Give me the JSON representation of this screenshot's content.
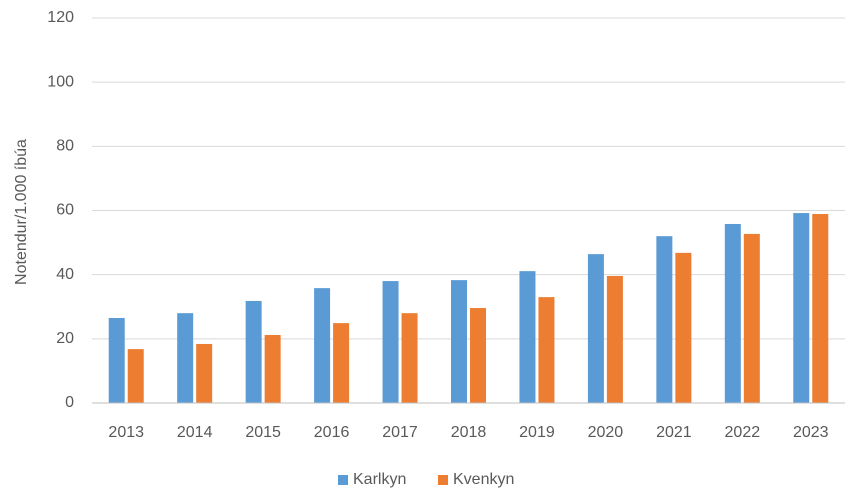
{
  "chart_data": {
    "type": "bar",
    "ylabel": "Notendur/1.000 íbúa",
    "categories": [
      "2013",
      "2014",
      "2015",
      "2016",
      "2017",
      "2018",
      "2019",
      "2020",
      "2021",
      "2022",
      "2023"
    ],
    "series": [
      {
        "name": "Karlkyn",
        "color": "#5b9bd5",
        "values": [
          26.5,
          28,
          31.8,
          35.8,
          38,
          38.3,
          41.1,
          46.4,
          52,
          55.8,
          59.2
        ]
      },
      {
        "name": "Kvenkyn",
        "color": "#ed7d31",
        "values": [
          16.8,
          18.4,
          21.2,
          24.9,
          28,
          29.6,
          33,
          39.6,
          46.8,
          52.7,
          58.9
        ]
      }
    ],
    "ylim": [
      0,
      120
    ],
    "yticks": [
      0,
      20,
      40,
      60,
      80,
      100,
      120
    ],
    "grid": true,
    "legend": "bottom"
  }
}
